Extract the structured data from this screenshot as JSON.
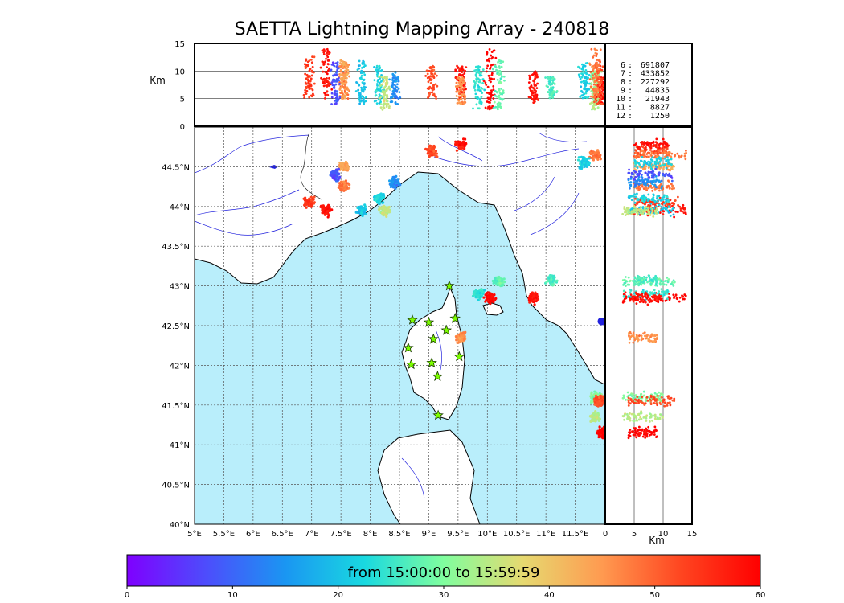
{
  "title": "SAETTA Lightning Mapping Array - 240818",
  "colorbar": {
    "label": "from 15:00:00 to 15:59:59",
    "ticks": [
      "0",
      "10",
      "20",
      "30",
      "40",
      "50",
      "60"
    ],
    "colors": [
      "#7f00ff",
      "#4d4dfc",
      "#1a96f2",
      "#19d9e0",
      "#80fe9e",
      "#e6d970",
      "#ff9a50",
      "#ff4520",
      "#ff0000"
    ]
  },
  "colors": {
    "sea": "#b9eefb",
    "river": "#2222dd",
    "land": "#ffffff",
    "station": "#7cfc00"
  },
  "chart_data": {
    "type": "scatter",
    "map": {
      "lon_range": [
        5,
        12
      ],
      "lat_range": [
        40,
        45
      ],
      "lon_ticks": [
        "5°E",
        "5.5°E",
        "6°E",
        "6.5°E",
        "7°E",
        "7.5°E",
        "8°E",
        "8.5°E",
        "9°E",
        "9.5°E",
        "10°E",
        "10.5°E",
        "11°E",
        "11.5°E"
      ],
      "lat_ticks": [
        "40°N",
        "40.5°N",
        "41°N",
        "41.5°N",
        "42°N",
        "42.5°N",
        "43°N",
        "43.5°N",
        "44°N",
        "44.5°N"
      ]
    },
    "altitude_lon_panel": {
      "ylabel": "Km",
      "ylim": [
        0,
        15
      ],
      "yticks": [
        "0",
        "5",
        "10",
        "15"
      ]
    },
    "altitude_lat_panel": {
      "xlabel": "Km",
      "xlim": [
        0,
        15
      ],
      "xticks": [
        "0",
        "5",
        "10",
        "15"
      ]
    },
    "station_counts": [
      {
        "station": "6",
        "count": "691807"
      },
      {
        "station": "7",
        "count": "433852",
        "highlight": "#ff0000"
      },
      {
        "station": "8",
        "count": "227292"
      },
      {
        "station": "9",
        "count": "44835"
      },
      {
        "station": "10",
        "count": "21943"
      },
      {
        "station": "11",
        "count": "8827"
      },
      {
        "station": "12",
        "count": "1250"
      }
    ],
    "clusters": [
      {
        "lon": 7.25,
        "lat": 43.95,
        "alt": [
          5,
          14
        ],
        "time": 58
      },
      {
        "lon": 6.95,
        "lat": 44.05,
        "alt": [
          5,
          13
        ],
        "time": 54
      },
      {
        "lon": 7.55,
        "lat": 44.25,
        "alt": [
          5,
          12
        ],
        "time": 48
      },
      {
        "lon": 7.55,
        "lat": 44.5,
        "alt": [
          5,
          12
        ],
        "time": 44
      },
      {
        "lon": 7.85,
        "lat": 43.95,
        "alt": [
          4,
          12
        ],
        "time": 20
      },
      {
        "lon": 7.4,
        "lat": 44.4,
        "alt": [
          4,
          12
        ],
        "time": 8
      },
      {
        "lon": 8.15,
        "lat": 44.1,
        "alt": [
          4,
          11
        ],
        "time": 22
      },
      {
        "lon": 8.42,
        "lat": 44.3,
        "alt": [
          4,
          10
        ],
        "time": 14
      },
      {
        "lon": 8.25,
        "lat": 43.95,
        "alt": [
          3,
          9
        ],
        "time": 35
      },
      {
        "lon": 9.05,
        "lat": 44.7,
        "alt": [
          5,
          11
        ],
        "time": 52
      },
      {
        "lon": 9.55,
        "lat": 44.78,
        "alt": [
          5,
          11
        ],
        "time": 58
      },
      {
        "lon": 10.05,
        "lat": 42.85,
        "alt": [
          3,
          14
        ],
        "time": 60
      },
      {
        "lon": 10.2,
        "lat": 43.05,
        "alt": [
          3,
          12
        ],
        "time": 28
      },
      {
        "lon": 9.85,
        "lat": 42.9,
        "alt": [
          3,
          11
        ],
        "time": 24
      },
      {
        "lon": 9.55,
        "lat": 42.35,
        "alt": [
          4,
          9
        ],
        "time": 46
      },
      {
        "lon": 10.8,
        "lat": 42.85,
        "alt": [
          4,
          10
        ],
        "time": 58
      },
      {
        "lon": 11.1,
        "lat": 43.07,
        "alt": [
          5,
          9
        ],
        "time": 26
      },
      {
        "lon": 11.85,
        "lat": 41.6,
        "alt": [
          3,
          10
        ],
        "time": 30
      },
      {
        "lon": 11.85,
        "lat": 41.35,
        "alt": [
          3,
          10
        ],
        "time": 34
      },
      {
        "lon": 11.95,
        "lat": 41.15,
        "alt": [
          4,
          9
        ],
        "time": 60
      },
      {
        "lon": 11.9,
        "lat": 41.55,
        "alt": [
          4,
          12
        ],
        "time": 52
      },
      {
        "lon": 11.85,
        "lat": 44.65,
        "alt": [
          5,
          14
        ],
        "time": 48
      },
      {
        "lon": 11.65,
        "lat": 44.55,
        "alt": [
          5,
          12
        ],
        "time": 22
      }
    ],
    "stations": [
      {
        "lon": 9.35,
        "lat": 43.0
      },
      {
        "lon": 8.72,
        "lat": 42.57
      },
      {
        "lon": 9.0,
        "lat": 42.54
      },
      {
        "lon": 9.45,
        "lat": 42.59
      },
      {
        "lon": 9.3,
        "lat": 42.44
      },
      {
        "lon": 9.08,
        "lat": 42.33
      },
      {
        "lon": 8.65,
        "lat": 42.22
      },
      {
        "lon": 9.52,
        "lat": 42.11
      },
      {
        "lon": 8.7,
        "lat": 42.01
      },
      {
        "lon": 9.05,
        "lat": 42.03
      },
      {
        "lon": 9.15,
        "lat": 41.86
      },
      {
        "lon": 9.16,
        "lat": 41.37
      }
    ]
  }
}
